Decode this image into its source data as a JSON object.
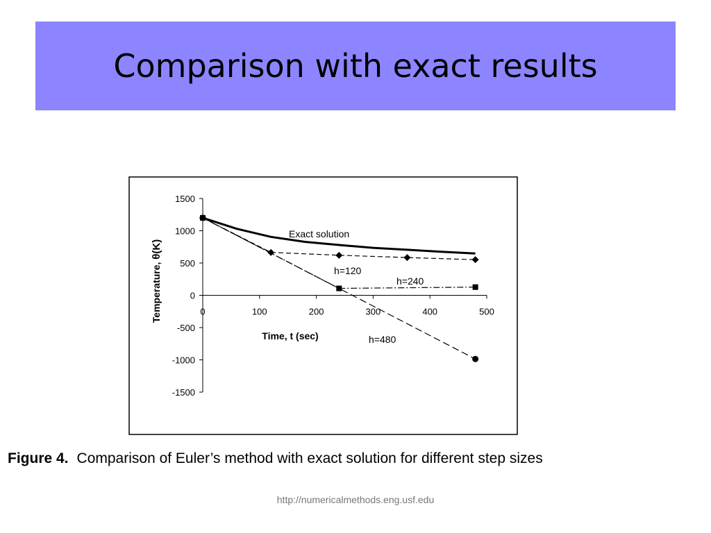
{
  "slide": {
    "title": "Comparison with exact results",
    "caption_label": "Figure 4.",
    "caption_text": "Comparison of Euler’s method with exact solution for different step sizes",
    "source_url": "http://numericalmethods.eng.usf.edu"
  },
  "colors": {
    "title_band": "#8c85ff",
    "text": "#000000",
    "url": "#777777"
  },
  "chart_data": {
    "type": "line",
    "title": "",
    "xlabel": "Time, t (sec)",
    "ylabel_prefix": "Temperature,",
    "ylabel_symbol": "θ(K)",
    "xlim": [
      0,
      500
    ],
    "ylim": [
      -1500,
      1500
    ],
    "x_ticks": [
      0,
      100,
      200,
      300,
      400,
      500
    ],
    "y_ticks": [
      1500,
      1000,
      500,
      0,
      -500,
      -1000,
      -1500
    ],
    "x_tick_labels": [
      "0",
      "100",
      "200",
      "300",
      "400",
      "500"
    ],
    "y_tick_labels": [
      "1500",
      "1000",
      "500",
      "0",
      "-500",
      "-1000",
      "-1500"
    ],
    "grid": false,
    "legend": "none",
    "series": [
      {
        "name": "Exact solution",
        "style": "solid",
        "marker": "none",
        "x": [
          0,
          60,
          120,
          180,
          240,
          300,
          360,
          420,
          480
        ],
        "y": [
          1200,
          1030,
          905,
          828,
          780,
          735,
          705,
          675,
          647
        ]
      },
      {
        "name": "h=120",
        "style": "dashed",
        "marker": "diamond",
        "x": [
          0,
          120,
          240,
          360,
          480
        ],
        "y": [
          1200,
          664,
          620,
          585,
          552
        ]
      },
      {
        "name": "h=240",
        "style": "dash-dot",
        "marker": "square",
        "x": [
          0,
          240,
          480
        ],
        "y": [
          1200,
          107,
          127
        ]
      },
      {
        "name": "h=480",
        "style": "long-dash",
        "marker": "circle",
        "x": [
          0,
          480
        ],
        "y": [
          1200,
          -987
        ]
      }
    ]
  }
}
